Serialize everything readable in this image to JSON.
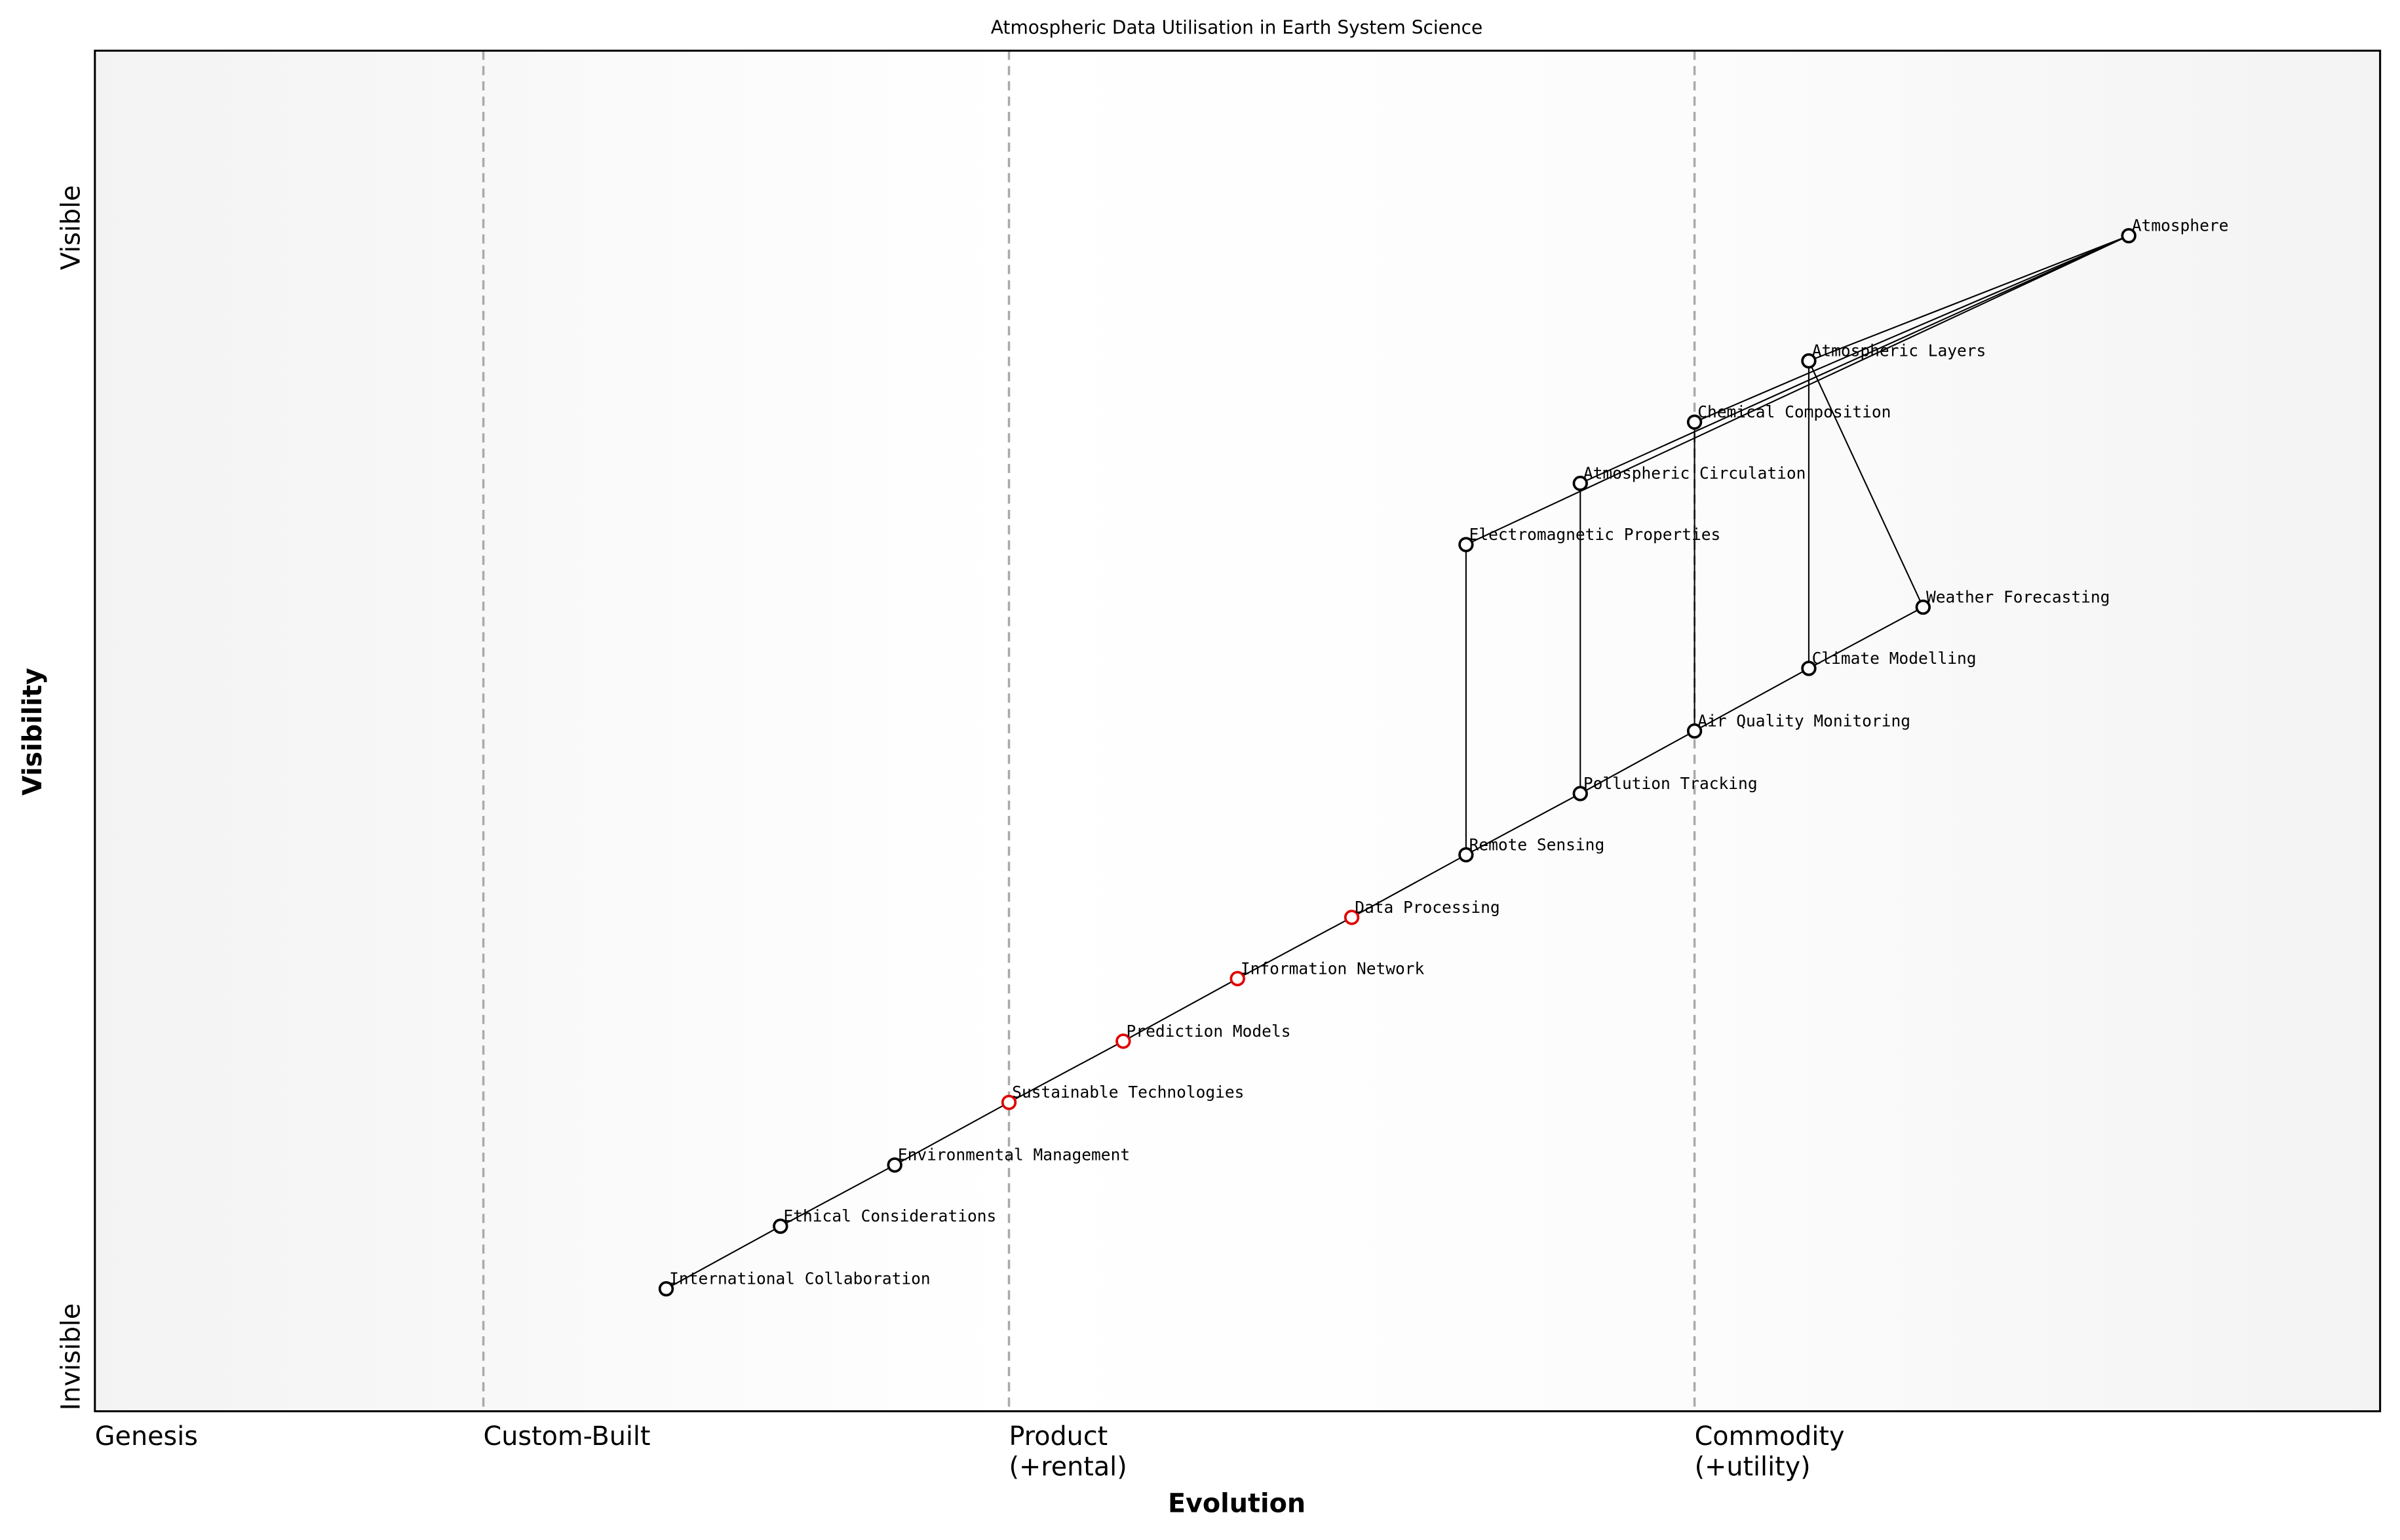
{
  "chart_data": {
    "type": "wardley",
    "title": "Atmospheric Data Utilisation in Earth System Science",
    "x_label": "Evolution",
    "y_label": "Visibility",
    "xlim": [
      0,
      1
    ],
    "ylim": [
      0,
      1
    ],
    "xticks": [
      {
        "value": 0,
        "label": "Genesis"
      },
      {
        "value": 0.17,
        "label": "Custom-Built"
      },
      {
        "value": 0.4,
        "label": "Product\n(+rental)"
      },
      {
        "value": 0.7,
        "label": "Commodity\n(+utility)"
      }
    ],
    "yticks": [
      {
        "value": 0.04,
        "label": "Invisible"
      },
      {
        "value": 0.87,
        "label": "Visible"
      }
    ],
    "nodes": [
      {
        "name": "Atmosphere",
        "x": 0.89,
        "y": 0.864,
        "color": "#000000"
      },
      {
        "name": "Atmospheric Layers",
        "x": 0.75,
        "y": 0.772,
        "color": "#000000"
      },
      {
        "name": "Chemical Composition",
        "x": 0.7,
        "y": 0.727,
        "color": "#000000"
      },
      {
        "name": "Atmospheric Circulation",
        "x": 0.65,
        "y": 0.682,
        "color": "#000000"
      },
      {
        "name": "Electromagnetic Properties",
        "x": 0.6,
        "y": 0.637,
        "color": "#000000"
      },
      {
        "name": "Weather Forecasting",
        "x": 0.8,
        "y": 0.591,
        "color": "#000000"
      },
      {
        "name": "Climate Modelling",
        "x": 0.75,
        "y": 0.546,
        "color": "#000000"
      },
      {
        "name": "Air Quality Monitoring",
        "x": 0.7,
        "y": 0.5,
        "color": "#000000"
      },
      {
        "name": "Pollution Tracking",
        "x": 0.65,
        "y": 0.454,
        "color": "#000000"
      },
      {
        "name": "Remote Sensing",
        "x": 0.6,
        "y": 0.409,
        "color": "#000000"
      },
      {
        "name": "Data Processing",
        "x": 0.55,
        "y": 0.363,
        "color": "#e00000"
      },
      {
        "name": "Information Network",
        "x": 0.5,
        "y": 0.318,
        "color": "#e00000"
      },
      {
        "name": "Prediction Models",
        "x": 0.45,
        "y": 0.272,
        "color": "#e00000"
      },
      {
        "name": "Sustainable Technologies",
        "x": 0.4,
        "y": 0.227,
        "color": "#e00000"
      },
      {
        "name": "Environmental Management",
        "x": 0.35,
        "y": 0.181,
        "color": "#000000"
      },
      {
        "name": "Ethical Considerations",
        "x": 0.3,
        "y": 0.136,
        "color": "#000000"
      },
      {
        "name": "International Collaboration",
        "x": 0.25,
        "y": 0.09,
        "color": "#000000"
      }
    ],
    "links": [
      [
        "Atmosphere",
        "Atmospheric Layers"
      ],
      [
        "Atmosphere",
        "Chemical Composition"
      ],
      [
        "Atmosphere",
        "Atmospheric Circulation"
      ],
      [
        "Atmosphere",
        "Electromagnetic Properties"
      ],
      [
        "Atmospheric Layers",
        "Weather Forecasting"
      ],
      [
        "Atmospheric Layers",
        "Climate Modelling"
      ],
      [
        "Chemical Composition",
        "Air Quality Monitoring"
      ],
      [
        "Atmospheric Circulation",
        "Pollution Tracking"
      ],
      [
        "Electromagnetic Properties",
        "Remote Sensing"
      ],
      [
        "Weather Forecasting",
        "Climate Modelling"
      ],
      [
        "Climate Modelling",
        "Air Quality Monitoring"
      ],
      [
        "Air Quality Monitoring",
        "Pollution Tracking"
      ],
      [
        "Pollution Tracking",
        "Remote Sensing"
      ],
      [
        "Remote Sensing",
        "Data Processing"
      ],
      [
        "Data Processing",
        "Information Network"
      ],
      [
        "Information Network",
        "Prediction Models"
      ],
      [
        "Prediction Models",
        "Sustainable Technologies"
      ],
      [
        "Sustainable Technologies",
        "Environmental Management"
      ],
      [
        "Environmental Management",
        "Ethical Considerations"
      ],
      [
        "Ethical Considerations",
        "International Collaboration"
      ]
    ]
  }
}
